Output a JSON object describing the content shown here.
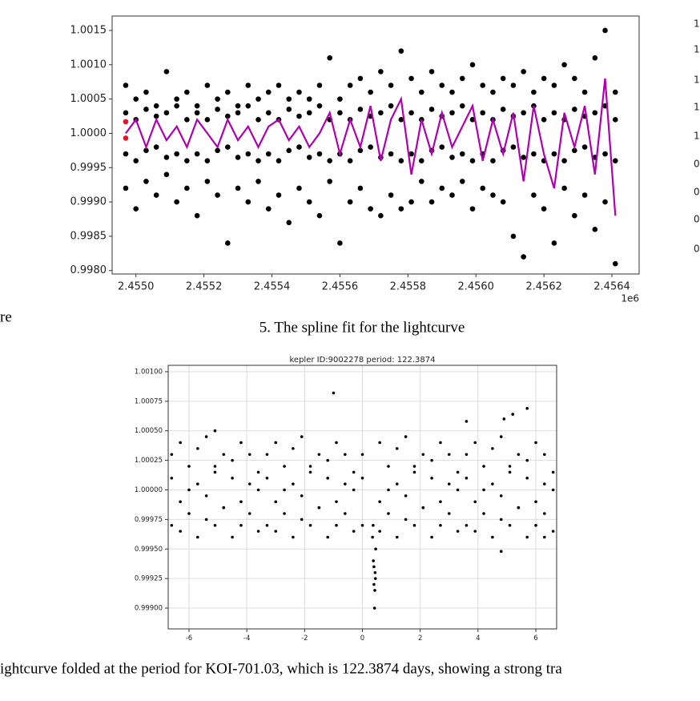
{
  "chart_data": [
    {
      "type": "scatter",
      "x_offset_label": "1e6",
      "xlim": [
        2.45493,
        2.45648
      ],
      "ylim": [
        0.99795,
        1.00171
      ],
      "xticks": [
        {
          "value": 2.455,
          "label": "2.4550"
        },
        {
          "value": 2.4552,
          "label": "2.4552"
        },
        {
          "value": 2.4554,
          "label": "2.4554"
        },
        {
          "value": 2.4556,
          "label": "2.4556"
        },
        {
          "value": 2.4558,
          "label": "2.4558"
        },
        {
          "value": 2.456,
          "label": "2.4560"
        },
        {
          "value": 2.4562,
          "label": "2.4562"
        },
        {
          "value": 2.4564,
          "label": "2.4564"
        }
      ],
      "yticks": [
        {
          "value": 0.998,
          "label": "0.9980"
        },
        {
          "value": 0.9985,
          "label": "0.9985"
        },
        {
          "value": 0.999,
          "label": "0.9990"
        },
        {
          "value": 0.9995,
          "label": "0.9995"
        },
        {
          "value": 1.0,
          "label": "1.0000"
        },
        {
          "value": 1.0005,
          "label": "1.0005"
        },
        {
          "value": 1.001,
          "label": "1.0010"
        },
        {
          "value": 1.0015,
          "label": "1.0015"
        }
      ],
      "grid": false,
      "series": [
        {
          "color": "#000000",
          "x": [
            2.45497,
            2.455,
            2.45503,
            2.45506,
            2.45509,
            2.45512,
            2.45515,
            2.45518,
            2.45521,
            2.45524,
            2.45527,
            2.4553,
            2.45533,
            2.45536,
            2.45539,
            2.45542,
            2.45545,
            2.45548,
            2.45551,
            2.45554,
            2.45557,
            2.4556,
            2.45563,
            2.45566,
            2.45569,
            2.45572,
            2.45575,
            2.45578,
            2.45581,
            2.45584,
            2.45587,
            2.4559,
            2.45593,
            2.45596,
            2.45599,
            2.45602,
            2.45605,
            2.45608,
            2.45611,
            2.45614,
            2.45617,
            2.4562,
            2.45623,
            2.45626,
            2.45629,
            2.45632,
            2.45635,
            2.45638,
            2.45641
          ],
          "values": [
            1.0007,
            1.0005,
            1.0006,
            1.0004,
            1.0009,
            1.0005,
            1.0006,
            1.0004,
            1.0007,
            1.0005,
            1.0006,
            1.0004,
            1.0007,
            1.0005,
            1.0006,
            1.0007,
            1.0005,
            1.0006,
            1.0005,
            1.0007,
            1.0011,
            1.0005,
            1.0007,
            1.0008,
            1.0006,
            1.0009,
            1.0007,
            1.0012,
            1.0008,
            1.0006,
            1.0009,
            1.0007,
            1.0006,
            1.0008,
            1.001,
            1.0007,
            1.0006,
            1.0008,
            1.0007,
            1.0009,
            1.0006,
            1.0008,
            1.0007,
            1.001,
            1.0008,
            1.0006,
            1.0011,
            1.0015,
            1.0006
          ]
        },
        {
          "color": "#000000",
          "x": [
            2.45497,
            2.455,
            2.45503,
            2.45506,
            2.45509,
            2.45512,
            2.45515,
            2.45518,
            2.45521,
            2.45524,
            2.45527,
            2.4553,
            2.45533,
            2.45536,
            2.45539,
            2.45542,
            2.45545,
            2.45548,
            2.45551,
            2.45554,
            2.45557,
            2.4556,
            2.45563,
            2.45566,
            2.45569,
            2.45572,
            2.45575,
            2.45578,
            2.45581,
            2.45584,
            2.45587,
            2.4559,
            2.45593,
            2.45596,
            2.45599,
            2.45602,
            2.45605,
            2.45608,
            2.45611,
            2.45614,
            2.45617,
            2.4562,
            2.45623,
            2.45626,
            2.45629,
            2.45632,
            2.45635,
            2.45638,
            2.45641
          ],
          "values": [
            0.9992,
            0.9989,
            0.9993,
            0.9991,
            0.9994,
            0.999,
            0.9992,
            0.9988,
            0.9993,
            0.9991,
            0.9984,
            0.9992,
            0.999,
            0.9993,
            0.9989,
            0.9991,
            0.9987,
            0.9992,
            0.999,
            0.9988,
            0.9993,
            0.9984,
            0.999,
            0.9992,
            0.9989,
            0.9988,
            0.9991,
            0.9989,
            0.999,
            0.9993,
            0.999,
            0.9992,
            0.9991,
            0.9993,
            0.9989,
            0.9992,
            0.9991,
            0.999,
            0.9985,
            0.9982,
            0.9991,
            0.9989,
            0.9984,
            0.9992,
            0.9988,
            0.9991,
            0.9986,
            0.999,
            0.9981
          ]
        },
        {
          "color": "#000000",
          "x": [
            2.45497,
            2.455,
            2.45503,
            2.45506,
            2.45509,
            2.45512,
            2.45515,
            2.45518,
            2.45521,
            2.45524,
            2.45527,
            2.4553,
            2.45533,
            2.45536,
            2.45539,
            2.45542,
            2.45545,
            2.45548,
            2.45551,
            2.45554,
            2.45557,
            2.4556,
            2.45563,
            2.45566,
            2.45569,
            2.45572,
            2.45575,
            2.45578,
            2.45581,
            2.45584,
            2.45587,
            2.4559,
            2.45593,
            2.45596,
            2.45599,
            2.45602,
            2.45605,
            2.45608,
            2.45611,
            2.45614,
            2.45617,
            2.4562,
            2.45623,
            2.45626,
            2.45629,
            2.45632,
            2.45635,
            2.45638,
            2.45641
          ],
          "values": [
            1.0003,
            1.0002,
            1.00035,
            1.00025,
            1.0003,
            1.0004,
            1.0002,
            1.0003,
            1.0002,
            1.00035,
            1.00025,
            1.0003,
            1.0004,
            1.0002,
            1.0003,
            1.0002,
            1.00035,
            1.00025,
            1.0003,
            1.0004,
            1.0002,
            1.0003,
            1.0002,
            1.00035,
            1.00025,
            1.0003,
            1.0004,
            1.0002,
            1.0003,
            1.0002,
            1.00035,
            1.00025,
            1.0003,
            1.0004,
            1.0002,
            1.0003,
            1.0002,
            1.00035,
            1.00025,
            1.0003,
            1.0004,
            1.0002,
            1.0003,
            1.0002,
            1.00035,
            1.00025,
            1.0003,
            1.0004,
            1.0002
          ]
        },
        {
          "color": "#000000",
          "x": [
            2.45497,
            2.455,
            2.45503,
            2.45506,
            2.45509,
            2.45512,
            2.45515,
            2.45518,
            2.45521,
            2.45524,
            2.45527,
            2.4553,
            2.45533,
            2.45536,
            2.45539,
            2.45542,
            2.45545,
            2.45548,
            2.45551,
            2.45554,
            2.45557,
            2.4556,
            2.45563,
            2.45566,
            2.45569,
            2.45572,
            2.45575,
            2.45578,
            2.45581,
            2.45584,
            2.45587,
            2.4559,
            2.45593,
            2.45596,
            2.45599,
            2.45602,
            2.45605,
            2.45608,
            2.45611,
            2.45614,
            2.45617,
            2.4562,
            2.45623,
            2.45626,
            2.45629,
            2.45632,
            2.45635,
            2.45638,
            2.45641
          ],
          "values": [
            0.9997,
            0.9996,
            0.99975,
            0.9998,
            0.99965,
            0.9997,
            0.9996,
            0.9997,
            0.9996,
            0.99975,
            0.9998,
            0.99965,
            0.9997,
            0.9996,
            0.9997,
            0.9996,
            0.99975,
            0.9998,
            0.99965,
            0.9997,
            0.9996,
            0.9997,
            0.9996,
            0.99975,
            0.9998,
            0.99965,
            0.9997,
            0.9996,
            0.9997,
            0.9996,
            0.99975,
            0.9998,
            0.99965,
            0.9997,
            0.9996,
            0.9997,
            0.9996,
            0.99975,
            0.9998,
            0.99965,
            0.9997,
            0.9996,
            0.9997,
            0.9996,
            0.99975,
            0.9998,
            0.99965,
            0.9997,
            0.9996
          ]
        },
        {
          "color": "#b000b0",
          "kind": "line",
          "x": [
            2.45497,
            2.455,
            2.45503,
            2.45506,
            2.45509,
            2.45512,
            2.45515,
            2.45518,
            2.45521,
            2.45524,
            2.45527,
            2.4553,
            2.45533,
            2.45536,
            2.45539,
            2.45542,
            2.45545,
            2.45548,
            2.45551,
            2.45554,
            2.45557,
            2.4556,
            2.45563,
            2.45566,
            2.45569,
            2.45572,
            2.45575,
            2.45578,
            2.45581,
            2.45584,
            2.45587,
            2.4559,
            2.45593,
            2.45596,
            2.45599,
            2.45602,
            2.45605,
            2.45608,
            2.45611,
            2.45614,
            2.45617,
            2.4562,
            2.45623,
            2.45626,
            2.45629,
            2.45632,
            2.45635,
            2.45638,
            2.45641
          ],
          "values": [
            1.0,
            1.0002,
            0.9998,
            1.0002,
            0.9999,
            1.0001,
            0.9998,
            1.0002,
            1.0,
            0.9998,
            1.0002,
            0.9999,
            1.0001,
            0.9998,
            1.0001,
            1.0002,
            0.9999,
            1.0001,
            0.9998,
            1.0,
            1.0003,
            0.9997,
            1.0002,
            0.9998,
            1.0004,
            0.9996,
            1.0002,
            1.0005,
            0.9994,
            1.0002,
            0.9997,
            1.0003,
            0.9998,
            1.0001,
            1.0004,
            0.9996,
            1.0002,
            0.9997,
            1.0003,
            0.9993,
            1.0004,
            0.9997,
            0.9992,
            1.0003,
            0.9998,
            1.0004,
            0.9994,
            1.0008,
            0.9988
          ]
        },
        {
          "color": "#e8102a",
          "x": [
            2.45497,
            2.45497
          ],
          "values": [
            1.00017,
            0.99993
          ]
        }
      ]
    },
    {
      "type": "scatter",
      "title": "kepler ID:9002278 period: 122.3874",
      "xlim": [
        -6.72,
        6.72
      ],
      "ylim": [
        0.998824,
        1.001054
      ],
      "xticks": [
        -6,
        -4,
        -2,
        0,
        2,
        4,
        6
      ],
      "yticks": [
        {
          "value": 0.999,
          "label": "0.99900"
        },
        {
          "value": 0.99925,
          "label": "0.99925"
        },
        {
          "value": 0.9995,
          "label": "0.99950"
        },
        {
          "value": 0.99975,
          "label": "0.99975"
        },
        {
          "value": 1.0,
          "label": "1.00000"
        },
        {
          "value": 1.00025,
          "label": "1.00025"
        },
        {
          "value": 1.0005,
          "label": "1.00050"
        },
        {
          "value": 1.00075,
          "label": "1.00075"
        },
        {
          "value": 1.001,
          "label": "1.00100"
        }
      ],
      "grid": true,
      "series": [
        {
          "color": "#000000",
          "x": [
            -6.6,
            -6.3,
            -6.0,
            -5.7,
            -5.4,
            -5.1,
            -4.8,
            -4.5,
            -4.2,
            -3.9,
            -3.6,
            -3.3,
            -3.0,
            -2.7,
            -2.4,
            -2.1,
            -1.8,
            -1.5,
            -1.2,
            -0.9,
            -0.6,
            -0.3,
            0.0,
            0.6,
            0.9,
            1.2,
            1.5,
            1.8,
            2.1,
            2.4,
            2.7,
            3.0,
            3.3,
            3.6,
            3.9,
            4.2,
            4.5,
            4.8,
            5.1,
            5.4,
            5.7,
            6.0,
            6.3,
            6.6
          ],
          "values": [
            1.0003,
            1.0004,
            1.0002,
            1.00035,
            1.00045,
            1.0002,
            1.0003,
            1.00025,
            1.0004,
            1.0003,
            1.00015,
            1.0003,
            1.0004,
            1.0002,
            1.00035,
            1.00045,
            1.0002,
            1.0003,
            1.00025,
            1.0004,
            1.0003,
            1.00015,
            1.0003,
            1.0004,
            1.0002,
            1.00035,
            1.00045,
            1.0002,
            1.0003,
            1.00025,
            1.0004,
            1.0003,
            1.00015,
            1.0003,
            1.0004,
            1.0002,
            1.00035,
            1.00045,
            1.0002,
            1.0003,
            1.00025,
            1.0004,
            1.0003,
            1.00015
          ]
        },
        {
          "color": "#000000",
          "x": [
            -6.6,
            -6.3,
            -6.0,
            -5.7,
            -5.4,
            -5.1,
            -4.8,
            -4.5,
            -4.2,
            -3.9,
            -3.6,
            -3.3,
            -3.0,
            -2.7,
            -2.4,
            -2.1,
            -1.8,
            -1.5,
            -1.2,
            -0.9,
            -0.6,
            -0.3,
            0.0,
            0.6,
            0.9,
            1.2,
            1.5,
            1.8,
            2.1,
            2.4,
            2.7,
            3.0,
            3.3,
            3.6,
            3.9,
            4.2,
            4.5,
            4.8,
            5.1,
            5.4,
            5.7,
            6.0,
            6.3,
            6.6
          ],
          "values": [
            0.9997,
            0.99965,
            0.9998,
            0.9996,
            0.99975,
            0.9997,
            0.99985,
            0.9996,
            0.9997,
            0.9998,
            0.99965,
            0.9997,
            0.99965,
            0.9998,
            0.9996,
            0.99975,
            0.9997,
            0.99985,
            0.9996,
            0.9997,
            0.9998,
            0.99965,
            0.9997,
            0.99965,
            0.9998,
            0.9996,
            0.99975,
            0.9997,
            0.99985,
            0.9996,
            0.9997,
            0.9998,
            0.99965,
            0.9997,
            0.99965,
            0.9998,
            0.9996,
            0.99975,
            0.9997,
            0.99985,
            0.9996,
            0.9997,
            0.9998,
            0.99965
          ]
        },
        {
          "color": "#000000",
          "x": [
            -6.6,
            -6.3,
            -6.0,
            -5.7,
            -5.4,
            -5.1,
            -4.8,
            -4.5,
            -4.2,
            -3.9,
            -3.6,
            -3.3,
            -3.0,
            -2.7,
            -2.4,
            -2.1,
            -1.8,
            -1.5,
            -1.2,
            -0.9,
            -0.6,
            -0.3,
            0.0,
            0.6,
            0.9,
            1.2,
            1.5,
            1.8,
            2.1,
            2.4,
            2.7,
            3.0,
            3.3,
            3.6,
            3.9,
            4.2,
            4.5,
            4.8,
            5.1,
            5.4,
            5.7,
            6.0,
            6.3,
            6.6
          ],
          "values": [
            1.0001,
            0.9999,
            1.0,
            1.00005,
            0.99995,
            1.00015,
            0.99985,
            1.0001,
            0.9999,
            1.00005,
            1.0,
            1.0001,
            0.9999,
            1.0,
            1.00005,
            0.99995,
            1.00015,
            0.99985,
            1.0001,
            0.9999,
            1.00005,
            1.0,
            1.0001,
            0.9999,
            1.0,
            1.00005,
            0.99995,
            1.00015,
            0.99985,
            1.0001,
            0.9999,
            1.00005,
            1.0,
            1.0001,
            0.9999,
            1.0,
            1.00005,
            0.99995,
            1.00015,
            0.99985,
            1.0001,
            0.9999,
            1.00005,
            1.0
          ]
        },
        {
          "color": "#000000",
          "x": [
            0.35,
            0.38,
            0.4,
            0.42,
            0.44,
            0.46,
            0.4,
            0.43,
            0.37,
            0.45,
            -1.0,
            5.7,
            5.2,
            4.9,
            3.6,
            -5.1,
            4.8,
            6.3
          ],
          "values": [
            0.9996,
            0.9994,
            0.9992,
            0.999,
            0.9993,
            0.9995,
            0.99935,
            0.99915,
            0.9997,
            0.99925,
            1.00082,
            1.00069,
            1.00064,
            1.0006,
            1.00058,
            1.0005,
            0.99948,
            0.9996
          ]
        }
      ]
    }
  ],
  "captions": [
    "5. The spline fit for the lightcurve",
    "ightcurve folded at the period for KOI-701.03, which is 122.3874 days, showing a strong tra"
  ],
  "left_fragment": "re",
  "right_fragments": [
    "1.",
    "1.",
    "1.",
    "1.",
    "1.",
    "0.",
    "0.",
    "0.",
    "0."
  ]
}
